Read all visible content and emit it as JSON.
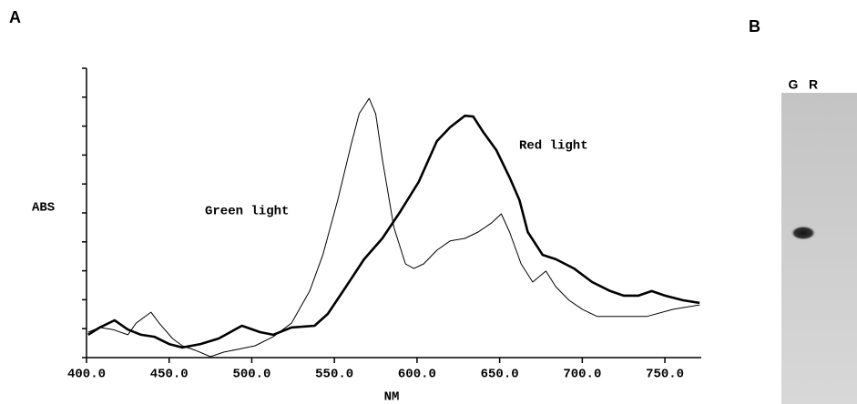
{
  "panel_a": "A",
  "panel_b": {
    "label": "B",
    "lanes": [
      "G",
      "R"
    ]
  },
  "chart_data": {
    "type": "line",
    "xlabel": "NM",
    "ylabel": "ABS",
    "xlim": [
      400,
      772
    ],
    "ylim": [
      0,
      10
    ],
    "xticks": [
      {
        "value": 400,
        "label": "400.0"
      },
      {
        "value": 450,
        "label": "450.0"
      },
      {
        "value": 500,
        "label": "500.0"
      },
      {
        "value": 550,
        "label": "550.0"
      },
      {
        "value": 600,
        "label": "600.0"
      },
      {
        "value": 650,
        "label": "650.0"
      },
      {
        "value": 700,
        "label": "700.0"
      },
      {
        "value": 750,
        "label": "750.0"
      }
    ],
    "yticks": [
      0,
      1,
      2,
      3,
      4,
      5,
      6,
      7,
      8,
      9,
      10
    ],
    "series": [
      {
        "name": "Green light",
        "color": "#000000",
        "width": 1,
        "x": [
          401,
          408,
          416,
          425,
          430,
          439,
          444,
          452,
          458,
          466,
          475,
          483,
          491,
          502,
          513,
          524,
          535,
          543,
          552,
          560,
          565,
          571,
          575,
          579,
          586,
          593,
          598,
          604,
          612,
          620,
          629,
          637,
          645,
          651,
          656,
          663,
          670,
          678,
          684,
          692,
          700,
          709,
          722,
          739,
          755,
          771
        ],
        "values": [
          0.88,
          1.04,
          0.97,
          0.79,
          1.19,
          1.57,
          1.19,
          0.66,
          0.41,
          0.25,
          0.03,
          0.19,
          0.28,
          0.41,
          0.72,
          1.19,
          2.3,
          3.55,
          5.44,
          7.33,
          8.43,
          8.96,
          8.43,
          6.86,
          4.5,
          3.24,
          3.08,
          3.24,
          3.71,
          4.03,
          4.12,
          4.34,
          4.65,
          4.97,
          4.34,
          3.24,
          2.61,
          2.99,
          2.45,
          1.98,
          1.67,
          1.42,
          1.42,
          1.42,
          1.67,
          1.82
        ]
      },
      {
        "name": "Red light",
        "color": "#000000",
        "width": 2.6,
        "x": [
          401,
          408,
          417,
          425,
          433,
          441,
          450,
          458,
          469,
          480,
          494,
          505,
          513,
          524,
          538,
          546,
          557,
          568,
          579,
          590,
          601,
          612,
          620,
          629,
          634,
          640,
          648,
          656,
          662,
          667,
          676,
          684,
          695,
          706,
          717,
          725,
          734,
          742,
          750,
          761,
          771
        ],
        "values": [
          0.79,
          1.04,
          1.29,
          0.97,
          0.79,
          0.72,
          0.47,
          0.35,
          0.47,
          0.66,
          1.1,
          0.88,
          0.79,
          1.04,
          1.1,
          1.51,
          2.45,
          3.4,
          4.12,
          5.06,
          6.07,
          7.48,
          7.96,
          8.36,
          8.33,
          7.8,
          7.17,
          6.23,
          5.44,
          4.34,
          3.55,
          3.4,
          3.08,
          2.61,
          2.3,
          2.14,
          2.14,
          2.3,
          2.14,
          1.98,
          1.89
        ]
      }
    ]
  }
}
